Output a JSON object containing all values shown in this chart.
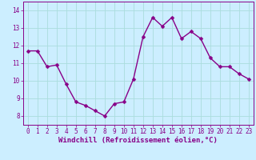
{
  "x": [
    0,
    1,
    2,
    3,
    4,
    5,
    6,
    7,
    8,
    9,
    10,
    11,
    12,
    13,
    14,
    15,
    16,
    17,
    18,
    19,
    20,
    21,
    22,
    23
  ],
  "y": [
    11.7,
    11.7,
    10.8,
    10.9,
    9.8,
    8.8,
    8.6,
    8.3,
    8.0,
    8.7,
    8.8,
    10.1,
    12.5,
    13.6,
    13.1,
    13.6,
    12.4,
    12.8,
    12.4,
    11.3,
    10.8,
    10.8,
    10.4,
    10.1
  ],
  "line_color": "#880088",
  "marker_color": "#880088",
  "bg_color": "#cceeff",
  "grid_color": "#aadddd",
  "xlabel": "Windchill (Refroidissement éolien,°C)",
  "ylim": [
    7.5,
    14.5
  ],
  "xlim": [
    -0.5,
    23.5
  ],
  "yticks": [
    8,
    9,
    10,
    11,
    12,
    13,
    14
  ],
  "xticks": [
    0,
    1,
    2,
    3,
    4,
    5,
    6,
    7,
    8,
    9,
    10,
    11,
    12,
    13,
    14,
    15,
    16,
    17,
    18,
    19,
    20,
    21,
    22,
    23
  ],
  "tick_color": "#880088",
  "label_color": "#880088",
  "tick_fontsize": 5.5,
  "xlabel_fontsize": 6.5,
  "line_width": 1.0,
  "marker_size": 2.5
}
